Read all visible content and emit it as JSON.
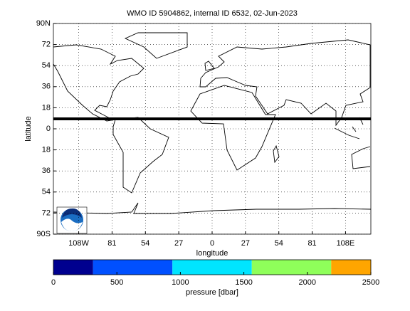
{
  "title": "WMO ID 5904862, internal ID 6532, 02-Jun-2023",
  "map": {
    "xlim": [
      -128.5,
      128.5
    ],
    "ylim": [
      -90,
      90
    ],
    "xticks": [
      {
        "value": -108,
        "label": "108W"
      },
      {
        "value": -81,
        "label": "81"
      },
      {
        "value": -54,
        "label": "54"
      },
      {
        "value": -27,
        "label": "27"
      },
      0,
      27,
      54,
      81,
      {
        "value": 108,
        "label": "108E"
      }
    ],
    "yticks": [
      {
        "value": 90,
        "label": "90N"
      },
      72,
      54,
      36,
      18,
      0,
      {
        "value": -18,
        "label": "18"
      },
      {
        "value": -36,
        "label": "36"
      },
      {
        "value": -54,
        "label": "54"
      },
      {
        "value": -72,
        "label": "72"
      },
      {
        "value": -90,
        "label": "90S"
      }
    ],
    "xlabel": "longitude",
    "ylabel": "latitude",
    "grid": true,
    "track_latitude": 8.5,
    "track_color": "#000000"
  },
  "colorbar": {
    "label": "pressure [dbar]",
    "lim": [
      0,
      2500
    ],
    "ticks": [
      0,
      500,
      1000,
      1500,
      2000,
      2500
    ],
    "bounds": [
      0,
      312.5,
      937.5,
      1562.5,
      2187.5,
      2500
    ],
    "colors": [
      "#00008f",
      "#0050ff",
      "#00e5ff",
      "#8fff5a",
      "#ffa500"
    ]
  }
}
